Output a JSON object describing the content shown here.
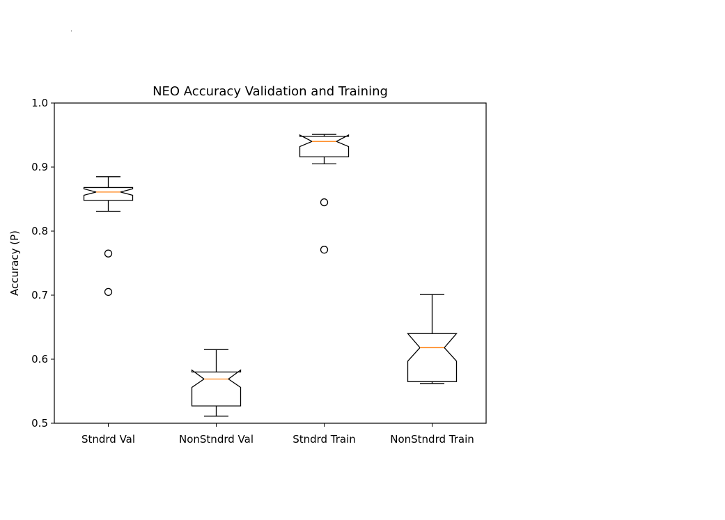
{
  "chart_data": {
    "type": "boxplot",
    "title": "NEO Accuracy Validation and Training",
    "xlabel": "",
    "ylabel": "Accuracy (P)",
    "ylim": [
      0.5,
      1.0
    ],
    "yticks": [
      "0.5",
      "0.6",
      "0.7",
      "0.8",
      "0.9",
      "1.0"
    ],
    "grid": false,
    "notched": true,
    "colors": {
      "box": "#000000",
      "median": "#ff7f0e",
      "flier": "#000000"
    },
    "categories": [
      "Stndrd Val",
      "NonStndrd Val",
      "Stndrd Train",
      "NonStndrd Train"
    ],
    "boxes": [
      {
        "label": "Stndrd Val",
        "whislo": 0.831,
        "q1": 0.848,
        "med": 0.861,
        "q3": 0.868,
        "whishi": 0.885,
        "notch_lo": 0.856,
        "notch_hi": 0.866,
        "fliers": [
          0.765,
          0.705
        ]
      },
      {
        "label": "NonStndrd Val",
        "whislo": 0.511,
        "q1": 0.527,
        "med": 0.569,
        "q3": 0.58,
        "whishi": 0.615,
        "notch_lo": 0.556,
        "notch_hi": 0.583,
        "fliers": []
      },
      {
        "label": "Stndrd Train",
        "whislo": 0.905,
        "q1": 0.916,
        "med": 0.94,
        "q3": 0.948,
        "whishi": 0.951,
        "notch_lo": 0.932,
        "notch_hi": 0.95,
        "fliers": [
          0.845,
          0.771
        ]
      },
      {
        "label": "NonStndrd Train",
        "whislo": 0.562,
        "q1": 0.565,
        "med": 0.618,
        "q3": 0.64,
        "whishi": 0.701,
        "notch_lo": 0.597,
        "notch_hi": 0.64,
        "fliers": []
      }
    ]
  }
}
